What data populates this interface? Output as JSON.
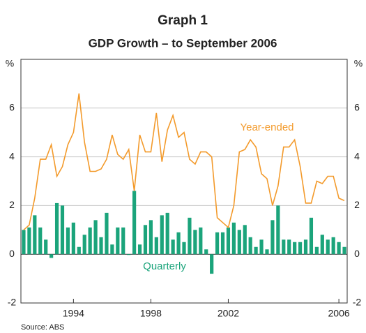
{
  "chart_data": {
    "type": "bar_line",
    "title": "Graph 1",
    "subtitle": "GDP Growth – to September 2006",
    "ylabel": "%",
    "y2label": "%",
    "source": "Source: ABS",
    "categories": [
      null,
      null,
      null,
      null,
      null,
      null,
      null,
      null,
      null,
      "1994",
      null,
      null,
      null,
      null,
      null,
      null,
      null,
      null,
      null,
      null,
      null,
      null,
      null,
      "1998",
      null,
      null,
      null,
      null,
      null,
      null,
      null,
      null,
      null,
      null,
      null,
      null,
      null,
      "2002",
      null,
      null,
      null,
      null,
      null,
      null,
      null,
      null,
      null,
      null,
      null,
      null,
      null,
      null,
      null,
      null,
      null,
      null,
      null,
      "2006",
      null
    ],
    "series": [
      {
        "name": "Quarterly",
        "color": "#1ba47b",
        "kind": "bar",
        "values": [
          1.0,
          1.1,
          1.6,
          1.1,
          0.6,
          -0.15,
          2.1,
          2.0,
          1.1,
          1.3,
          0.3,
          0.8,
          1.1,
          1.4,
          0.7,
          1.7,
          0.4,
          1.1,
          1.1,
          0.0,
          2.6,
          0.4,
          1.2,
          1.4,
          0.7,
          1.6,
          1.7,
          0.6,
          0.9,
          0.5,
          1.5,
          1.0,
          1.1,
          0.2,
          -0.8,
          0.9,
          0.9,
          1.1,
          1.3,
          1.0,
          1.2,
          0.7,
          0.3,
          0.6,
          0.2,
          1.4,
          2.0,
          0.6,
          0.6,
          0.5,
          0.5,
          0.6,
          1.5,
          0.3,
          0.8,
          0.6,
          0.7,
          0.5,
          0.3
        ]
      },
      {
        "name": "Year-ended",
        "color": "#f39a2b",
        "kind": "line",
        "values": [
          1.0,
          1.2,
          2.3,
          3.9,
          3.9,
          4.5,
          3.2,
          3.6,
          4.5,
          5.0,
          6.6,
          4.6,
          3.4,
          3.4,
          3.5,
          3.9,
          4.9,
          4.1,
          3.9,
          4.3,
          2.6,
          4.9,
          4.2,
          4.2,
          5.8,
          3.8,
          5.1,
          5.7,
          4.8,
          5.0,
          3.9,
          3.7,
          4.2,
          4.2,
          4.0,
          1.5,
          1.3,
          1.1,
          2.0,
          4.2,
          4.3,
          4.7,
          4.4,
          3.3,
          3.1,
          2.0,
          2.8,
          4.4,
          4.4,
          4.7,
          3.6,
          2.1,
          2.1,
          3.0,
          2.9,
          3.2,
          3.2,
          2.3,
          2.2
        ]
      }
    ],
    "ylim": [
      -2,
      8
    ],
    "yticks": [
      -2,
      0,
      2,
      4,
      6
    ],
    "grid": true
  }
}
